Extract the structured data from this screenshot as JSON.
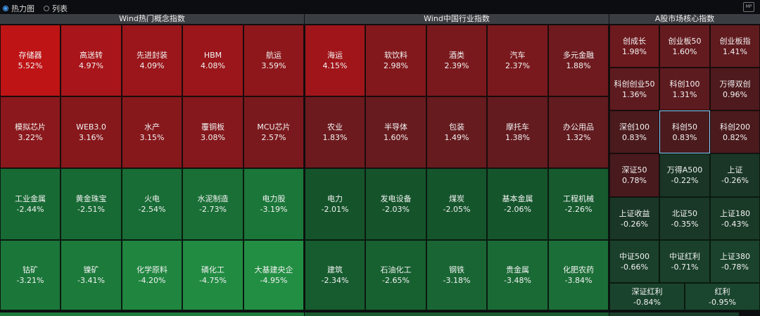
{
  "view_options": {
    "heatmap": "热力图",
    "list": "列表",
    "selected": "heatmap"
  },
  "corner_icon": "MP",
  "sections": [
    {
      "title": "Wind热门概念指数"
    },
    {
      "title": "Wind中国行业指数"
    },
    {
      "title": "A股市场核心指数"
    }
  ],
  "concept": [
    {
      "name": "存储器",
      "pct": "5.52%",
      "color": "#be1416"
    },
    {
      "name": "高送转",
      "pct": "4.97%",
      "color": "#a8151a"
    },
    {
      "name": "先进封装",
      "pct": "4.09%",
      "color": "#9a161a"
    },
    {
      "name": "HBM",
      "pct": "4.08%",
      "color": "#9a161a"
    },
    {
      "name": "航运",
      "pct": "3.59%",
      "color": "#8e171b"
    },
    {
      "name": "模拟芯片",
      "pct": "3.22%",
      "color": "#8a181c"
    },
    {
      "name": "WEB3.0",
      "pct": "3.16%",
      "color": "#86181c"
    },
    {
      "name": "水产",
      "pct": "3.15%",
      "color": "#86181c"
    },
    {
      "name": "覆铜板",
      "pct": "3.08%",
      "color": "#84181c"
    },
    {
      "name": "MCU芯片",
      "pct": "2.57%",
      "color": "#7a191d"
    },
    {
      "name": "工业金属",
      "pct": "-2.44%",
      "color": "#186a34"
    },
    {
      "name": "黄金珠宝",
      "pct": "-2.51%",
      "color": "#186a34"
    },
    {
      "name": "火电",
      "pct": "-2.54%",
      "color": "#186c35"
    },
    {
      "name": "水泥制造",
      "pct": "-2.73%",
      "color": "#196f36"
    },
    {
      "name": "电力股",
      "pct": "-3.19%",
      "color": "#1b7639"
    },
    {
      "name": "钴矿",
      "pct": "-3.21%",
      "color": "#1b7639"
    },
    {
      "name": "镍矿",
      "pct": "-3.41%",
      "color": "#1c7a3b"
    },
    {
      "name": "化学原料",
      "pct": "-4.20%",
      "color": "#1f853f"
    },
    {
      "name": "磷化工",
      "pct": "-4.75%",
      "color": "#218b42"
    },
    {
      "name": "大基建央企",
      "pct": "-4.95%",
      "color": "#228e43"
    }
  ],
  "industry": [
    {
      "name": "海运",
      "pct": "4.15%",
      "color": "#a0151a"
    },
    {
      "name": "软饮料",
      "pct": "2.98%",
      "color": "#82181c"
    },
    {
      "name": "酒类",
      "pct": "2.39%",
      "color": "#7a191d"
    },
    {
      "name": "汽车",
      "pct": "2.37%",
      "color": "#7a191d"
    },
    {
      "name": "多元金融",
      "pct": "1.88%",
      "color": "#6e1a1e"
    },
    {
      "name": "农业",
      "pct": "1.83%",
      "color": "#6c1a1e"
    },
    {
      "name": "半导体",
      "pct": "1.60%",
      "color": "#681b1f"
    },
    {
      "name": "包装",
      "pct": "1.49%",
      "color": "#661b1f"
    },
    {
      "name": "摩托车",
      "pct": "1.38%",
      "color": "#641b1f"
    },
    {
      "name": "办公用品",
      "pct": "1.32%",
      "color": "#621b1f"
    },
    {
      "name": "电力",
      "pct": "-2.01%",
      "color": "#15542b"
    },
    {
      "name": "发电设备",
      "pct": "-2.03%",
      "color": "#15542b"
    },
    {
      "name": "煤炭",
      "pct": "-2.05%",
      "color": "#15552c"
    },
    {
      "name": "基本金属",
      "pct": "-2.06%",
      "color": "#15552c"
    },
    {
      "name": "工程机械",
      "pct": "-2.26%",
      "color": "#165a2e"
    },
    {
      "name": "建筑",
      "pct": "-2.34%",
      "color": "#165c2f"
    },
    {
      "name": "石油化工",
      "pct": "-2.65%",
      "color": "#176030"
    },
    {
      "name": "钢铁",
      "pct": "-3.18%",
      "color": "#196634"
    },
    {
      "name": "贵金属",
      "pct": "-3.48%",
      "color": "#1a6a35"
    },
    {
      "name": "化肥农药",
      "pct": "-3.84%",
      "color": "#1b6e37"
    }
  ],
  "core": [
    {
      "name": "创成长",
      "pct": "1.98%",
      "color": "#6c1a1e"
    },
    {
      "name": "创业板50",
      "pct": "1.60%",
      "color": "#641b1f"
    },
    {
      "name": "创业板指",
      "pct": "1.41%",
      "color": "#601b1f"
    },
    {
      "name": "科创创业50",
      "pct": "1.36%",
      "color": "#5e1b1f"
    },
    {
      "name": "科创100",
      "pct": "1.31%",
      "color": "#5c1b1f"
    },
    {
      "name": "万得双创",
      "pct": "0.96%",
      "color": "#4e1a1d"
    },
    {
      "name": "深创100",
      "pct": "0.83%",
      "color": "#4a1a1d"
    },
    {
      "name": "科创50",
      "pct": "0.83%",
      "color": "#4a1a1d",
      "selected": true
    },
    {
      "name": "科创200",
      "pct": "0.82%",
      "color": "#4a1a1d"
    },
    {
      "name": "深证50",
      "pct": "0.78%",
      "color": "#481a1d"
    },
    {
      "name": "万得A500",
      "pct": "-0.22%",
      "color": "#1a3526"
    },
    {
      "name": "上证",
      "pct": "-0.26%",
      "color": "#1a3627"
    },
    {
      "name": "上证收益",
      "pct": "-0.26%",
      "color": "#1a3627"
    },
    {
      "name": "北证50",
      "pct": "-0.35%",
      "color": "#1a3828"
    },
    {
      "name": "上证180",
      "pct": "-0.43%",
      "color": "#1a3a28"
    },
    {
      "name": "中证500",
      "pct": "-0.66%",
      "color": "#1a3f2b"
    },
    {
      "name": "中证红利",
      "pct": "-0.71%",
      "color": "#1a402b"
    },
    {
      "name": "上证380",
      "pct": "-0.78%",
      "color": "#1a422c"
    },
    {
      "name": "深证红利",
      "pct": "-0.84%",
      "color": "#1a432d"
    },
    {
      "name": "红利",
      "pct": "-0.95%",
      "color": "#1a452e"
    }
  ]
}
